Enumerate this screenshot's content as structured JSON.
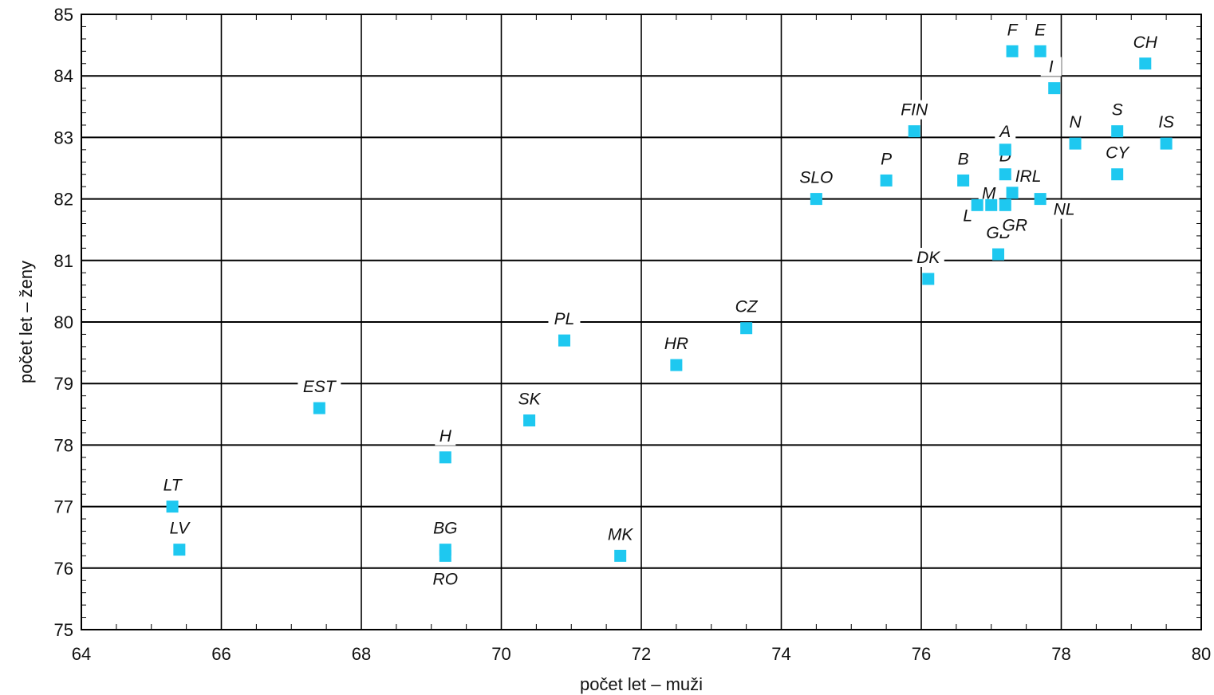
{
  "chart_data": {
    "type": "scatter",
    "title": "",
    "xlabel": "počet let – muži",
    "ylabel": "počet let – ženy",
    "xlim": [
      64,
      80
    ],
    "ylim": [
      75,
      85
    ],
    "x_ticks": [
      64,
      66,
      68,
      70,
      72,
      74,
      76,
      78,
      80
    ],
    "y_ticks": [
      75,
      76,
      77,
      78,
      79,
      80,
      81,
      82,
      83,
      84,
      85
    ],
    "grid": true,
    "marker_color": "#1ec8f0",
    "highlight_color": "#ff0000",
    "points": [
      {
        "label": "LT",
        "x": 65.3,
        "y": 77.0
      },
      {
        "label": "LV",
        "x": 65.4,
        "y": 76.3
      },
      {
        "label": "EST",
        "x": 67.4,
        "y": 78.6
      },
      {
        "label": "H",
        "x": 69.2,
        "y": 77.8
      },
      {
        "label": "BG",
        "x": 69.2,
        "y": 76.3
      },
      {
        "label": "RO",
        "x": 69.2,
        "y": 76.2
      },
      {
        "label": "SK",
        "x": 70.4,
        "y": 78.4
      },
      {
        "label": "PL",
        "x": 70.9,
        "y": 79.7
      },
      {
        "label": "MK",
        "x": 71.7,
        "y": 76.2
      },
      {
        "label": "HR",
        "x": 72.5,
        "y": 79.3
      },
      {
        "label": "CZ",
        "x": 73.5,
        "y": 79.9,
        "highlight": true
      },
      {
        "label": "SLO",
        "x": 74.5,
        "y": 82.0
      },
      {
        "label": "P",
        "x": 75.5,
        "y": 82.3
      },
      {
        "label": "FIN",
        "x": 75.9,
        "y": 83.1
      },
      {
        "label": "DK",
        "x": 76.1,
        "y": 80.7
      },
      {
        "label": "B",
        "x": 76.6,
        "y": 82.3
      },
      {
        "label": "L",
        "x": 76.8,
        "y": 81.9
      },
      {
        "label": "M",
        "x": 77.0,
        "y": 81.9
      },
      {
        "label": "GB",
        "x": 77.1,
        "y": 81.1
      },
      {
        "label": "A",
        "x": 77.2,
        "y": 82.8
      },
      {
        "label": "D",
        "x": 77.2,
        "y": 82.4
      },
      {
        "label": "GR",
        "x": 77.2,
        "y": 81.9
      },
      {
        "label": "IRL",
        "x": 77.3,
        "y": 82.1
      },
      {
        "label": "F",
        "x": 77.3,
        "y": 84.4
      },
      {
        "label": "E",
        "x": 77.7,
        "y": 84.4
      },
      {
        "label": "NL",
        "x": 77.7,
        "y": 82.0
      },
      {
        "label": "I",
        "x": 77.9,
        "y": 83.8
      },
      {
        "label": "N",
        "x": 78.2,
        "y": 82.9
      },
      {
        "label": "S",
        "x": 78.8,
        "y": 83.1
      },
      {
        "label": "CY",
        "x": 78.8,
        "y": 82.4
      },
      {
        "label": "CH",
        "x": 79.2,
        "y": 84.2
      },
      {
        "label": "IS",
        "x": 79.5,
        "y": 82.9
      }
    ]
  }
}
